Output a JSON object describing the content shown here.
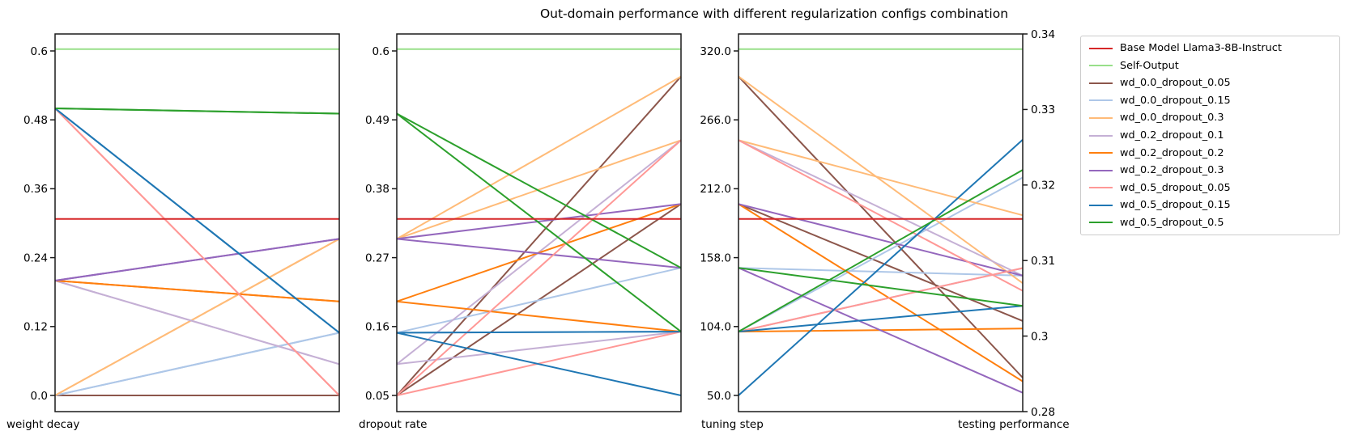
{
  "title": "Out-domain performance with different regularization configs combination",
  "chart_data": {
    "type": "line",
    "subtype": "parallel-coordinates",
    "title": "Out-domain performance with different regularization configs combination",
    "grid": "off",
    "legend_position": "upper right, outside plot",
    "axes": [
      {
        "label": "weight decay",
        "min": 0.0,
        "max": 0.6,
        "tick_labels": [
          "0.6",
          "0.48",
          "0.36",
          "0.24",
          "0.12",
          "0.0"
        ]
      },
      {
        "label": "dropout rate",
        "min": 0.05,
        "max": 0.6,
        "tick_labels": [
          "0.6",
          "0.49",
          "0.38",
          "0.27",
          "0.16",
          "0.05"
        ]
      },
      {
        "label": "tuning step",
        "min": 50,
        "max": 320,
        "tick_labels": [
          "320.0",
          "266.0",
          "212.0",
          "158.0",
          "104.0",
          "50.0"
        ]
      },
      {
        "label": "testing performance",
        "side": "right",
        "tick_labels": [
          "0.34",
          "0.33",
          "0.32",
          "0.31",
          "0.3",
          "0.28"
        ],
        "anchors": [
          [
            0.34,
            0.0
          ],
          [
            0.33,
            0.2
          ],
          [
            0.32,
            0.4
          ],
          [
            0.31,
            0.6
          ],
          [
            0.3,
            0.8
          ],
          [
            0.28,
            1.0
          ]
        ]
      }
    ],
    "reference_lines": [
      {
        "name": "Base Model Llama3-8B-Instruct",
        "color": "#d62728",
        "testing_performance": 0.3155
      },
      {
        "name": "Self-Output",
        "color": "#98df8a",
        "testing_performance": 0.338
      }
    ],
    "series": [
      {
        "name": "wd_0.0_dropout_0.05",
        "color": "#8c564b",
        "weight_decay": 0.0,
        "dropout": 0.05,
        "runs": [
          {
            "tuning_step": 300,
            "testing_performance": 0.289
          },
          {
            "tuning_step": 200,
            "testing_performance": 0.302
          }
        ]
      },
      {
        "name": "wd_0.0_dropout_0.15",
        "color": "#aec7e8",
        "weight_decay": 0.0,
        "dropout": 0.15,
        "runs": [
          {
            "tuning_step": 100,
            "testing_performance": 0.321
          },
          {
            "tuning_step": 150,
            "testing_performance": 0.308
          }
        ]
      },
      {
        "name": "wd_0.0_dropout_0.3",
        "color": "#ffbb78",
        "weight_decay": 0.0,
        "dropout": 0.3,
        "runs": [
          {
            "tuning_step": 250,
            "testing_performance": 0.316
          },
          {
            "tuning_step": 300,
            "testing_performance": 0.307
          }
        ]
      },
      {
        "name": "wd_0.2_dropout_0.1",
        "color": "#c5b0d5",
        "weight_decay": 0.2,
        "dropout": 0.1,
        "runs": [
          {
            "tuning_step": 250,
            "testing_performance": 0.308
          },
          {
            "tuning_step": 100,
            "testing_performance": 0.309
          }
        ]
      },
      {
        "name": "wd_0.2_dropout_0.2",
        "color": "#ff7f0e",
        "weight_decay": 0.2,
        "dropout": 0.2,
        "runs": [
          {
            "tuning_step": 200,
            "testing_performance": 0.288
          },
          {
            "tuning_step": 100,
            "testing_performance": 0.301
          }
        ]
      },
      {
        "name": "wd_0.2_dropout_0.3",
        "color": "#9467bd",
        "weight_decay": 0.2,
        "dropout": 0.3,
        "runs": [
          {
            "tuning_step": 200,
            "testing_performance": 0.308
          },
          {
            "tuning_step": 150,
            "testing_performance": 0.285
          }
        ]
      },
      {
        "name": "wd_0.5_dropout_0.05",
        "color": "#ff9896",
        "weight_decay": 0.5,
        "dropout": 0.05,
        "runs": [
          {
            "tuning_step": 250,
            "testing_performance": 0.306
          },
          {
            "tuning_step": 100,
            "testing_performance": 0.309
          }
        ]
      },
      {
        "name": "wd_0.5_dropout_0.15",
        "color": "#1f77b4",
        "weight_decay": 0.5,
        "dropout": 0.15,
        "runs": [
          {
            "tuning_step": 50,
            "testing_performance": 0.326
          },
          {
            "tuning_step": 100,
            "testing_performance": 0.304
          }
        ]
      },
      {
        "name": "wd_0.5_dropout_0.5",
        "color": "#2ca02c",
        "weight_decay": 0.5,
        "dropout": 0.5,
        "runs": [
          {
            "tuning_step": 150,
            "testing_performance": 0.304
          },
          {
            "tuning_step": 100,
            "testing_performance": 0.322
          }
        ]
      }
    ]
  }
}
